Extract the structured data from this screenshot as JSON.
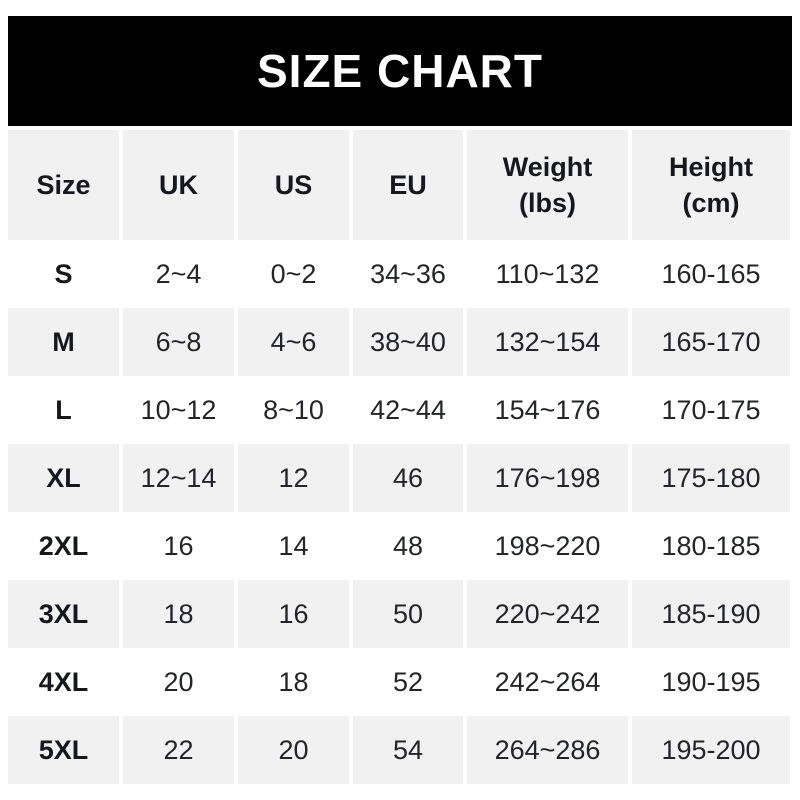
{
  "banner": {
    "title": "SIZE CHART",
    "bg_color": "#000000",
    "text_color": "#ffffff"
  },
  "header": {
    "size": "Size",
    "uk": "UK",
    "us": "US",
    "eu": "EU",
    "weight_line1": "Weight",
    "weight_line2": "(lbs)",
    "height_line1": "Height",
    "height_line2": "(cm)"
  },
  "rows": [
    {
      "size": "S",
      "uk": "2~4",
      "us": "0~2",
      "eu": "34~36",
      "weight": "110~132",
      "height": "160-165"
    },
    {
      "size": "M",
      "uk": "6~8",
      "us": "4~6",
      "eu": "38~40",
      "weight": "132~154",
      "height": "165-170"
    },
    {
      "size": "L",
      "uk": "10~12",
      "us": "8~10",
      "eu": "42~44",
      "weight": "154~176",
      "height": "170-175"
    },
    {
      "size": "XL",
      "uk": "12~14",
      "us": "12",
      "eu": "46",
      "weight": "176~198",
      "height": "175-180"
    },
    {
      "size": "2XL",
      "uk": "16",
      "us": "14",
      "eu": "48",
      "weight": "198~220",
      "height": "180-185"
    },
    {
      "size": "3XL",
      "uk": "18",
      "us": "16",
      "eu": "50",
      "weight": "220~242",
      "height": "185-190"
    },
    {
      "size": "4XL",
      "uk": "20",
      "us": "18",
      "eu": "52",
      "weight": "242~264",
      "height": "190-195"
    },
    {
      "size": "5XL",
      "uk": "22",
      "us": "20",
      "eu": "54",
      "weight": "264~286",
      "height": "195-200"
    }
  ],
  "colors": {
    "row_alt_gray": "#f1f1f2",
    "background": "#ffffff",
    "banner_black": "#000000",
    "text_dark": "#16181b"
  },
  "chart_data": {
    "type": "table",
    "title": "SIZE CHART",
    "columns": [
      "Size",
      "UK",
      "US",
      "EU",
      "Weight (lbs)",
      "Height (cm)"
    ],
    "rows": [
      [
        "S",
        "2~4",
        "0~2",
        "34~36",
        "110~132",
        "160-165"
      ],
      [
        "M",
        "6~8",
        "4~6",
        "38~40",
        "132~154",
        "165-170"
      ],
      [
        "L",
        "10~12",
        "8~10",
        "42~44",
        "154~176",
        "170-175"
      ],
      [
        "XL",
        "12~14",
        "12",
        "46",
        "176~198",
        "175-180"
      ],
      [
        "2XL",
        "16",
        "14",
        "48",
        "198~220",
        "180-185"
      ],
      [
        "3XL",
        "18",
        "16",
        "50",
        "220~242",
        "185-190"
      ],
      [
        "4XL",
        "20",
        "18",
        "52",
        "242~264",
        "190-195"
      ],
      [
        "5XL",
        "22",
        "20",
        "54",
        "264~286",
        "195-200"
      ]
    ],
    "layout": "alternating row shading (header gray, then white/gray), white gutters between columns"
  }
}
